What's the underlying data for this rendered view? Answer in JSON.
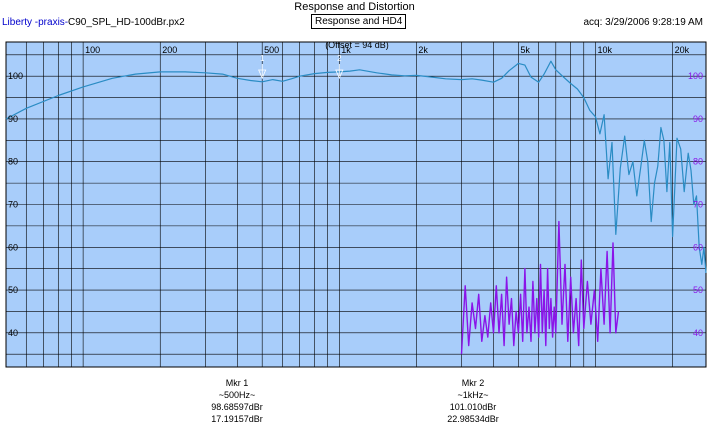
{
  "header": {
    "title": "Response and Distortion",
    "app_name": "Liberty -praxis-",
    "file_name": "C90_SPL_HD-100dBr.px2",
    "mode": "Response and HD4",
    "acquired": "acq: 3/29/2006 9:28:19 AM"
  },
  "markers": [
    {
      "name": "Mkr 1",
      "freq": "~500Hz~",
      "level": "98.68597dBr",
      "distortion": "17.19157dBr"
    },
    {
      "name": "Mkr 2",
      "freq": "~1kHz~",
      "level": "101.010dBr",
      "distortion": "22.98534dBr"
    }
  ],
  "chart_data": {
    "type": "line",
    "annotation": "(Offset = 94 dB)",
    "x_scale": "log",
    "xlim": [
      50,
      27000
    ],
    "ylim": [
      32,
      108
    ],
    "grid": true,
    "marker_labels": [
      "1",
      "2"
    ],
    "marker_freqs": [
      500,
      1000
    ],
    "x_tick_labels": [
      {
        "v": 100,
        "label": "100"
      },
      {
        "v": 200,
        "label": "200"
      },
      {
        "v": 500,
        "label": "500"
      },
      {
        "v": 1000,
        "label": "1k"
      },
      {
        "v": 2000,
        "label": "2k"
      },
      {
        "v": 5000,
        "label": "5k"
      },
      {
        "v": 10000,
        "label": "10k"
      },
      {
        "v": 20000,
        "label": "20k"
      }
    ],
    "y_ticks": [
      40,
      50,
      60,
      70,
      80,
      90,
      100
    ],
    "y_tick_labels": [
      "40",
      "50",
      "60",
      "70",
      "80",
      "90",
      "100"
    ],
    "series": [
      {
        "color": "#2a8cc4",
        "x": [
          50,
          60,
          80,
          100,
          130,
          160,
          200,
          250,
          300,
          350,
          400,
          450,
          500,
          550,
          600,
          650,
          700,
          800,
          900,
          1000,
          1100,
          1200,
          1400,
          1600,
          1800,
          2000,
          2300,
          2600,
          3000,
          3300,
          3600,
          4000,
          4300,
          4600,
          5000,
          5300,
          5600,
          6000,
          6300,
          6700,
          7000,
          7500,
          8000,
          8500,
          9000,
          9500,
          10000,
          10400,
          10800,
          11200,
          11600,
          12000,
          12500,
          13000,
          13500,
          14000,
          14500,
          15000,
          15500,
          16000,
          16500,
          17000,
          17500,
          18000,
          18500,
          19000,
          19500,
          20000,
          20800,
          21500,
          22200,
          23000,
          23600,
          24200,
          24800,
          25400,
          26000,
          26500,
          27000
        ],
        "y": [
          90,
          92.5,
          95.5,
          97.5,
          99.5,
          100.5,
          101,
          101,
          100.8,
          100.5,
          99.5,
          99,
          98.7,
          99.2,
          98.8,
          99.4,
          100,
          100.6,
          100.9,
          101,
          101.2,
          101.5,
          100.8,
          100.3,
          100.1,
          100.2,
          99.8,
          99.4,
          99.2,
          99.4,
          99.1,
          98.6,
          99.5,
          101.3,
          103,
          102.6,
          99.8,
          98.6,
          100.5,
          103.5,
          101.5,
          99.8,
          98.3,
          97,
          95,
          92,
          90.5,
          86.5,
          91,
          76,
          84.5,
          63,
          78.5,
          86,
          77,
          80,
          72,
          78.5,
          85,
          80,
          66,
          75,
          79,
          88,
          85,
          73,
          84.5,
          62.5,
          85.5,
          83,
          73,
          82,
          78,
          70,
          72,
          60,
          56,
          60,
          54
        ]
      },
      {
        "color": "#8a14e8",
        "x": [
          3000,
          3100,
          3200,
          3300,
          3400,
          3500,
          3600,
          3700,
          3800,
          3900,
          4000,
          4100,
          4200,
          4300,
          4400,
          4500,
          4600,
          4700,
          4800,
          4900,
          5000,
          5100,
          5200,
          5300,
          5400,
          5500,
          5600,
          5700,
          5800,
          5900,
          6000,
          6100,
          6200,
          6300,
          6400,
          6500,
          6600,
          6700,
          6800,
          6900,
          7000,
          7200,
          7400,
          7600,
          7800,
          8000,
          8200,
          8400,
          8600,
          8800,
          9000,
          9300,
          9600,
          9900,
          10200,
          10500,
          10800,
          11100,
          11400,
          11700,
          12000,
          12300
        ],
        "y": [
          35,
          51,
          37,
          47,
          41,
          49,
          38,
          44,
          39,
          47,
          40,
          51,
          40,
          49,
          37,
          53,
          42,
          48,
          37,
          45,
          40,
          49,
          38,
          55,
          40,
          46,
          38,
          52,
          40,
          48,
          39,
          56,
          40,
          50,
          37,
          55,
          41,
          48,
          39,
          46,
          40,
          66,
          42,
          56,
          38,
          53,
          40,
          48,
          37,
          57,
          41,
          52,
          42,
          50,
          38,
          55,
          42,
          59,
          40,
          61,
          40,
          45
        ]
      }
    ]
  }
}
